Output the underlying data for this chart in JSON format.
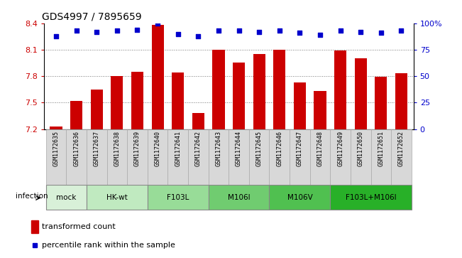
{
  "title": "GDS4997 / 7895659",
  "samples": [
    "GSM1172635",
    "GSM1172636",
    "GSM1172637",
    "GSM1172638",
    "GSM1172639",
    "GSM1172640",
    "GSM1172641",
    "GSM1172642",
    "GSM1172643",
    "GSM1172644",
    "GSM1172645",
    "GSM1172646",
    "GSM1172647",
    "GSM1172648",
    "GSM1172649",
    "GSM1172650",
    "GSM1172651",
    "GSM1172652"
  ],
  "bar_values": [
    7.23,
    7.52,
    7.65,
    7.8,
    7.85,
    8.38,
    7.84,
    7.38,
    8.1,
    7.95,
    8.05,
    8.1,
    7.73,
    7.63,
    8.09,
    8.0,
    7.79,
    7.83
  ],
  "percentile_values": [
    88,
    93,
    92,
    93,
    94,
    100,
    90,
    88,
    93,
    93,
    92,
    93,
    91,
    89,
    93,
    92,
    91,
    93
  ],
  "ylim_left": [
    7.2,
    8.4
  ],
  "ylim_right": [
    0,
    100
  ],
  "yticks_left": [
    7.2,
    7.5,
    7.8,
    8.1,
    8.4
  ],
  "yticks_right": [
    0,
    25,
    50,
    75,
    100
  ],
  "ytick_labels_right": [
    "0",
    "25",
    "50",
    "75",
    "100%"
  ],
  "groups": [
    {
      "label": "mock",
      "start": 0,
      "end": 1,
      "color": "#d8f0d8"
    },
    {
      "label": "HK-wt",
      "start": 2,
      "end": 4,
      "color": "#c0eac0"
    },
    {
      "label": "F103L",
      "start": 5,
      "end": 7,
      "color": "#a0dfa0"
    },
    {
      "label": "M106I",
      "start": 8,
      "end": 10,
      "color": "#7dce7d"
    },
    {
      "label": "M106V",
      "start": 11,
      "end": 13,
      "color": "#5fc45f"
    },
    {
      "label": "F103L+M106I",
      "start": 14,
      "end": 17,
      "color": "#3db53d"
    }
  ],
  "bar_color": "#cc0000",
  "dot_color": "#0000cc",
  "infection_label": "infection",
  "legend_bar_label": "transformed count",
  "legend_dot_label": "percentile rank within the sample",
  "grid_color": "#777777",
  "tick_label_color_left": "#cc0000",
  "tick_label_color_right": "#0000cc",
  "cell_bg_color": "#d8d8d8",
  "cell_border_color": "#aaaaaa"
}
